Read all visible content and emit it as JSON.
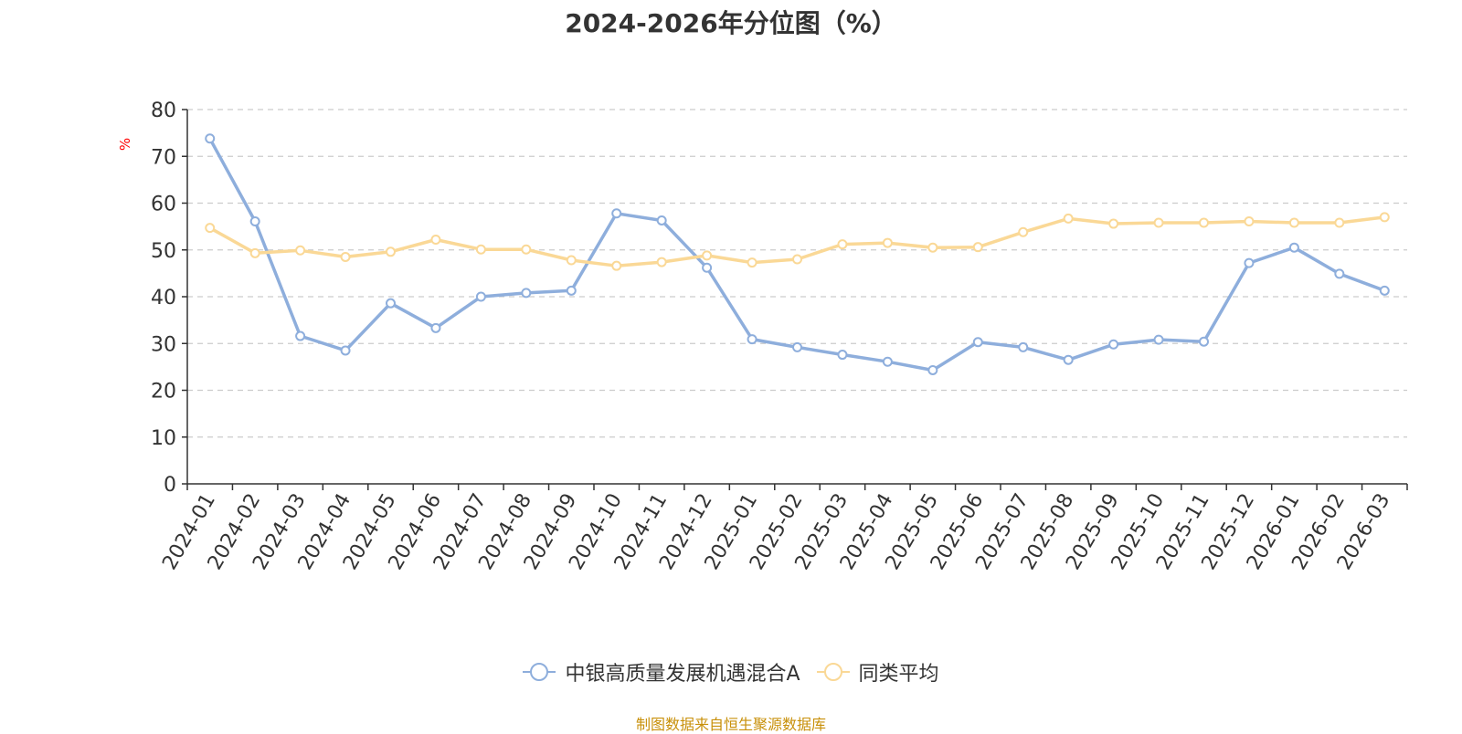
{
  "chart_data": {
    "type": "line",
    "title": "2024-2026年分位图（%）",
    "ylabel": "%",
    "xlabel": "",
    "ylim": [
      0,
      80
    ],
    "yticks": [
      0,
      10,
      20,
      30,
      40,
      50,
      60,
      70,
      80
    ],
    "grid": true,
    "legend_position": "bottom",
    "categories": [
      "2024-01",
      "2024-02",
      "2024-03",
      "2024-04",
      "2024-05",
      "2024-06",
      "2024-07",
      "2024-08",
      "2024-09",
      "2024-10",
      "2024-11",
      "2024-12",
      "2025-01",
      "2025-02",
      "2025-03",
      "2025-04",
      "2025-05",
      "2025-06",
      "2025-07",
      "2025-08",
      "2025-09",
      "2025-10",
      "2025-11",
      "2025-12",
      "2026-01",
      "2026-02",
      "2026-03"
    ],
    "series": [
      {
        "name": "中银高质量发展机遇混合A",
        "color": "#8eaedc",
        "values": [
          73.8,
          56.1,
          31.6,
          28.5,
          38.6,
          33.3,
          40.0,
          40.8,
          41.3,
          57.8,
          56.3,
          46.2,
          30.9,
          29.2,
          27.6,
          26.1,
          24.3,
          30.3,
          29.2,
          26.5,
          29.8,
          30.8,
          30.4,
          47.2,
          50.5,
          44.9,
          41.3
        ]
      },
      {
        "name": "同类平均",
        "color": "#fad896",
        "values": [
          54.7,
          49.3,
          49.9,
          48.5,
          49.6,
          52.2,
          50.1,
          50.1,
          47.8,
          46.6,
          47.4,
          48.8,
          47.3,
          48.0,
          51.2,
          51.5,
          50.5,
          50.6,
          53.8,
          56.7,
          55.6,
          55.8,
          55.8,
          56.1,
          55.8,
          55.8,
          57.0
        ]
      }
    ]
  },
  "footer": {
    "source": "制图数据来自恒生聚源数据库"
  }
}
